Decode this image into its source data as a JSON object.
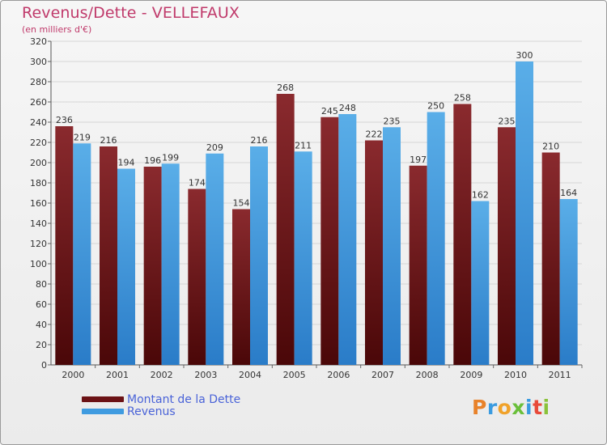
{
  "header": {
    "title": "Revenus/Dette - VELLEFAUX",
    "subtitle": "(en milliers d'€)"
  },
  "legend": {
    "items": [
      {
        "label": "Montant de la Dette",
        "color": "#7a1a1d"
      },
      {
        "label": "Revenus",
        "color": "#3f9be0"
      }
    ]
  },
  "brand": {
    "letters": [
      "P",
      "r",
      "o",
      "x",
      "i",
      "t",
      "i"
    ],
    "colors": [
      "#e8822a",
      "#3a9be0",
      "#f0a22a",
      "#6abf3a",
      "#3a9be0",
      "#e84a3a",
      "#8ac23a"
    ]
  },
  "chart_data": {
    "type": "bar",
    "title": "Revenus/Dette - VELLEFAUX",
    "ylabel": "(en milliers d'€)",
    "xlabel": "",
    "categories": [
      "2000",
      "2001",
      "2002",
      "2003",
      "2004",
      "2005",
      "2006",
      "2007",
      "2008",
      "2009",
      "2010",
      "2011"
    ],
    "series": [
      {
        "name": "Montant de la Dette",
        "color": "#7a1a1d",
        "values": [
          236,
          216,
          196,
          174,
          154,
          268,
          245,
          222,
          197,
          258,
          235,
          210
        ]
      },
      {
        "name": "Revenus",
        "color": "#3f9be0",
        "values": [
          219,
          194,
          199,
          209,
          216,
          211,
          248,
          235,
          250,
          162,
          300,
          164
        ]
      }
    ],
    "ylim": [
      0,
      320
    ],
    "ytick_step": 20,
    "grid": true,
    "legend_position": "bottom-left"
  }
}
